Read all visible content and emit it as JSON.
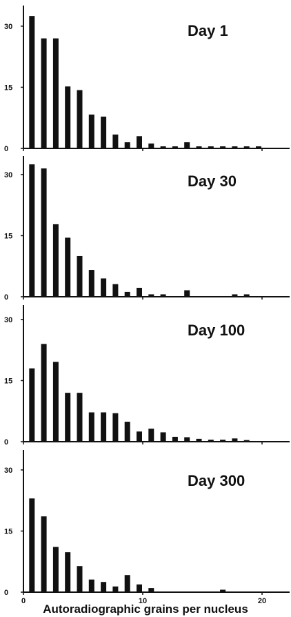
{
  "chart_data": {
    "type": "bar",
    "xlabel": "Autoradiographic grains per nucleus",
    "x_ticks": [
      "0",
      "10",
      "20"
    ],
    "y_ticks": [
      "0",
      "15",
      "30"
    ],
    "ylim": [
      0,
      32
    ],
    "xlim": [
      0,
      21
    ],
    "categories": [
      1,
      2,
      3,
      4,
      5,
      6,
      7,
      8,
      9,
      10,
      11,
      12,
      13,
      14,
      15,
      16,
      17,
      18,
      19,
      20
    ],
    "panels": [
      {
        "title": "Day 1",
        "values": [
          32.5,
          27,
          27,
          15.2,
          14.3,
          8.3,
          7.8,
          3.4,
          1.5,
          3,
          1.2,
          0.5,
          0.5,
          1.5,
          0.5,
          0.5,
          0.5,
          0.5,
          0.5,
          0.5
        ]
      },
      {
        "title": "Day 30",
        "values": [
          32.5,
          31.5,
          17.8,
          14.5,
          10,
          6.6,
          4.5,
          3.1,
          1.2,
          2.2,
          0.6,
          0.6,
          0,
          1.6,
          0,
          0,
          0,
          0.6,
          0.6,
          0
        ]
      },
      {
        "title": "Day 100",
        "values": [
          18,
          24,
          19.6,
          12,
          12,
          7.2,
          7.2,
          7,
          4.9,
          2.5,
          3.2,
          2.3,
          1.2,
          1.1,
          0.7,
          0.5,
          0.5,
          0.8,
          0.4,
          0
        ]
      },
      {
        "title": "Day 300",
        "values": [
          23,
          18.6,
          11.1,
          9.8,
          6.4,
          3.1,
          2.5,
          1.4,
          4.2,
          1.9,
          1,
          0,
          0,
          0,
          0,
          0,
          0.6,
          0,
          0,
          0
        ]
      }
    ]
  }
}
